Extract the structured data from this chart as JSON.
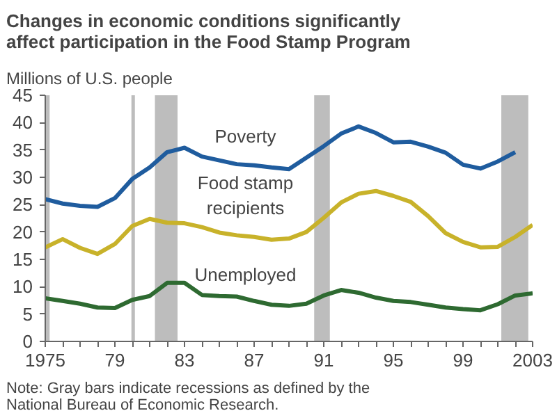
{
  "chart_data": {
    "type": "line",
    "title": "Changes in economic conditions significantly\naffect participation in the Food Stamp Program",
    "ylabel": "Millions of U.S. people",
    "x": [
      1975,
      1976,
      1977,
      1978,
      1979,
      1980,
      1981,
      1982,
      1983,
      1984,
      1985,
      1986,
      1987,
      1988,
      1989,
      1990,
      1991,
      1992,
      1993,
      1994,
      1995,
      1996,
      1997,
      1998,
      1999,
      2000,
      2001,
      2002,
      2003
    ],
    "series": [
      {
        "name": "Poverty",
        "color": "#1f5c9e",
        "values": [
          26.0,
          25.2,
          24.8,
          24.6,
          26.2,
          29.7,
          31.8,
          34.6,
          35.4,
          33.8,
          33.1,
          32.4,
          32.2,
          31.8,
          31.5,
          33.6,
          35.7,
          38.0,
          39.3,
          38.1,
          36.4,
          36.5,
          35.6,
          34.5,
          32.3,
          31.6,
          32.9,
          34.6,
          null
        ]
      },
      {
        "name": "Food stamp\nrecipients",
        "color": "#c8b22a",
        "values": [
          17.2,
          18.7,
          17.1,
          16.0,
          17.8,
          21.1,
          22.4,
          21.7,
          21.6,
          20.9,
          19.9,
          19.4,
          19.1,
          18.6,
          18.8,
          20.0,
          22.6,
          25.4,
          27.0,
          27.5,
          26.6,
          25.5,
          22.9,
          19.8,
          18.2,
          17.2,
          17.3,
          19.1,
          21.3
        ]
      },
      {
        "name": "Unemployed",
        "color": "#2e6a31",
        "values": [
          7.9,
          7.4,
          6.9,
          6.2,
          6.1,
          7.6,
          8.3,
          10.7,
          10.7,
          8.5,
          8.3,
          8.2,
          7.4,
          6.7,
          6.5,
          6.9,
          8.4,
          9.4,
          8.9,
          8.0,
          7.4,
          7.2,
          6.7,
          6.2,
          5.9,
          5.7,
          6.8,
          8.4,
          8.8
        ]
      }
    ],
    "bands": [
      {
        "axis": "x",
        "from": 1975,
        "to": 1975.25,
        "color": "#bdbdbd"
      },
      {
        "axis": "x",
        "from": 1979.95,
        "to": 1980.15,
        "color": "#bdbdbd"
      },
      {
        "axis": "x",
        "from": 1981.3,
        "to": 1982.6,
        "color": "#bdbdbd"
      },
      {
        "axis": "x",
        "from": 1990.45,
        "to": 1991.35,
        "color": "#bdbdbd"
      },
      {
        "axis": "x",
        "from": 2001.2,
        "to": 2002.75,
        "color": "#bdbdbd"
      }
    ],
    "xlim": [
      1975,
      2003
    ],
    "ylim": [
      0,
      45
    ],
    "xticks": [
      1975,
      {
        "value": 1976,
        "label": null
      },
      {
        "value": 1977,
        "label": null
      },
      {
        "value": 1978,
        "label": null
      },
      {
        "value": 1979,
        "label": "79"
      },
      {
        "value": 1980,
        "label": null
      },
      {
        "value": 1981,
        "label": null
      },
      {
        "value": 1982,
        "label": null
      },
      {
        "value": 1983,
        "label": "83"
      },
      {
        "value": 1984,
        "label": null
      },
      {
        "value": 1985,
        "label": null
      },
      {
        "value": 1986,
        "label": null
      },
      {
        "value": 1987,
        "label": "87"
      },
      {
        "value": 1988,
        "label": null
      },
      {
        "value": 1989,
        "label": null
      },
      {
        "value": 1990,
        "label": null
      },
      {
        "value": 1991,
        "label": "91"
      },
      {
        "value": 1992,
        "label": null
      },
      {
        "value": 1993,
        "label": null
      },
      {
        "value": 1994,
        "label": null
      },
      {
        "value": 1995,
        "label": "95"
      },
      {
        "value": 1996,
        "label": null
      },
      {
        "value": 1997,
        "label": null
      },
      {
        "value": 1998,
        "label": null
      },
      {
        "value": 1999,
        "label": "99"
      },
      {
        "value": 2000,
        "label": null
      },
      {
        "value": 2001,
        "label": null
      },
      {
        "value": 2002,
        "label": null
      },
      2003
    ],
    "yticks": [
      0,
      5,
      10,
      15,
      20,
      25,
      30,
      35,
      40,
      45
    ],
    "grid": false,
    "legend": false,
    "line_style": "solid",
    "marker": "none",
    "annotations": [
      "Note: Gray bars indicate recessions as defined by the\nNational Bureau of Economic Research."
    ]
  }
}
